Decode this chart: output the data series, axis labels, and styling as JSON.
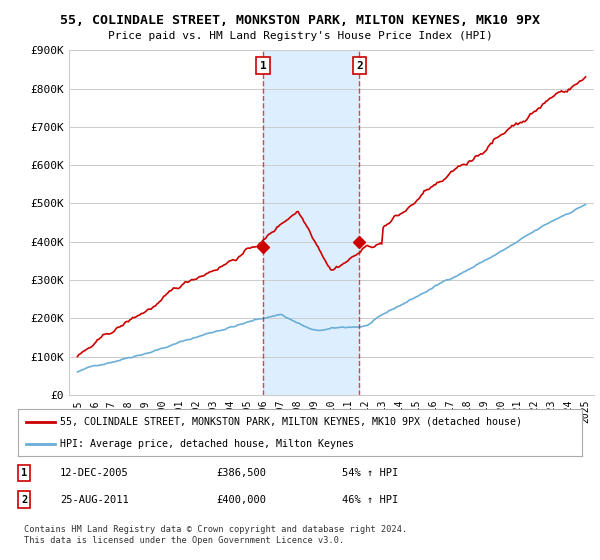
{
  "title": "55, COLINDALE STREET, MONKSTON PARK, MILTON KEYNES, MK10 9PX",
  "subtitle": "Price paid vs. HM Land Registry's House Price Index (HPI)",
  "ylim": [
    0,
    900000
  ],
  "yticks": [
    0,
    100000,
    200000,
    300000,
    400000,
    500000,
    600000,
    700000,
    800000,
    900000
  ],
  "ytick_labels": [
    "£0",
    "£100K",
    "£200K",
    "£300K",
    "£400K",
    "£500K",
    "£600K",
    "£700K",
    "£800K",
    "£900K"
  ],
  "sale1_date": 2005.95,
  "sale1_price": 386500,
  "sale1_label": "1",
  "sale2_date": 2011.65,
  "sale2_price": 400000,
  "sale2_label": "2",
  "hpi_color": "#6baed6",
  "price_color": "#cc0000",
  "vline_color": "#cc0000",
  "annotation_bg": "#ddeeff",
  "grid_color": "#cccccc",
  "background_color": "#ffffff",
  "legend_line1": "55, COLINDALE STREET, MONKSTON PARK, MILTON KEYNES, MK10 9PX (detached house)",
  "legend_line2": "HPI: Average price, detached house, Milton Keynes",
  "note1_label": "1",
  "note1_date": "12-DEC-2005",
  "note1_price": "£386,500",
  "note1_hpi": "54% ↑ HPI",
  "note2_label": "2",
  "note2_date": "25-AUG-2011",
  "note2_price": "£400,000",
  "note2_hpi": "46% ↑ HPI",
  "footnote": "Contains HM Land Registry data © Crown copyright and database right 2024.\nThis data is licensed under the Open Government Licence v3.0."
}
